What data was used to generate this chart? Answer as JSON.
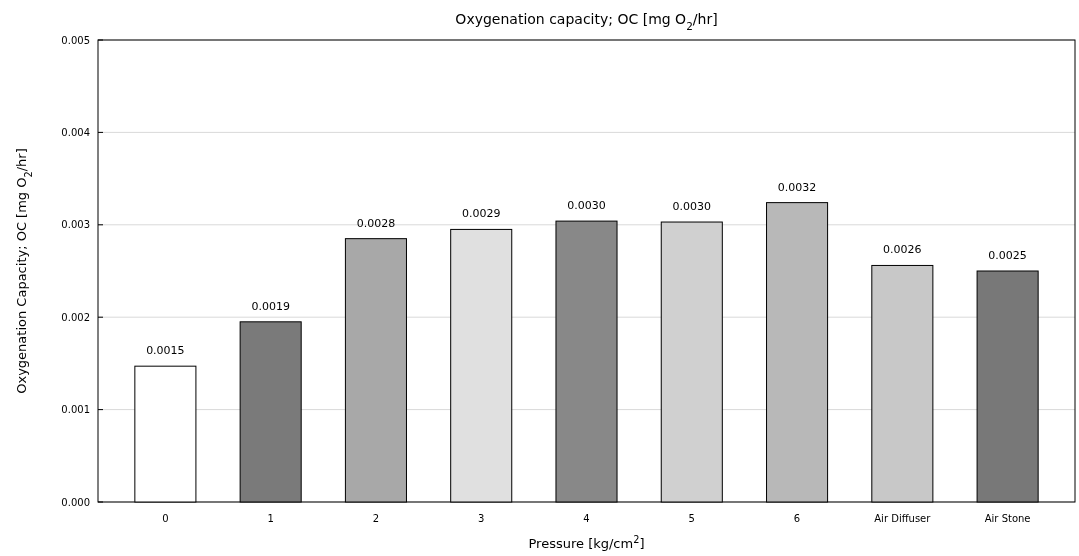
{
  "chart_data": {
    "type": "bar",
    "title": "Oxygenation capacity; OC [mg O$_{2}$/hr]",
    "xlabel": "Pressure [kg/cm$^{2}$]",
    "ylabel": "Oxygenation Capacity; OC [mg O$_{2}$/hr]",
    "categories": [
      "0",
      "1",
      "2",
      "3",
      "4",
      "5",
      "6",
      "Air Diffuser",
      "Air Stone"
    ],
    "values": [
      0.00147,
      0.00195,
      0.00285,
      0.00295,
      0.00304,
      0.00303,
      0.00324,
      0.00256,
      0.0025
    ],
    "value_labels": [
      "0.0015",
      "0.0019",
      "0.0028",
      "0.0029",
      "0.0030",
      "0.0030",
      "0.0032",
      "0.0026",
      "0.0025"
    ],
    "colors": [
      "#ffffff",
      "#7a7a7a",
      "#a8a8a8",
      "#e0e0e0",
      "#888888",
      "#d0d0d0",
      "#b8b8b8",
      "#c8c8c8",
      "#787878"
    ],
    "ylim": [
      0,
      0.005
    ],
    "yticks": [
      {
        "value": 0,
        "label": "0.000"
      },
      {
        "value": 0.001,
        "label": "0.001"
      },
      {
        "value": 0.002,
        "label": "0.002"
      },
      {
        "value": 0.003,
        "label": "0.003"
      },
      {
        "value": 0.004,
        "label": "0.004"
      },
      {
        "value": 0.005,
        "label": "0.005"
      }
    ],
    "grid": "y"
  }
}
